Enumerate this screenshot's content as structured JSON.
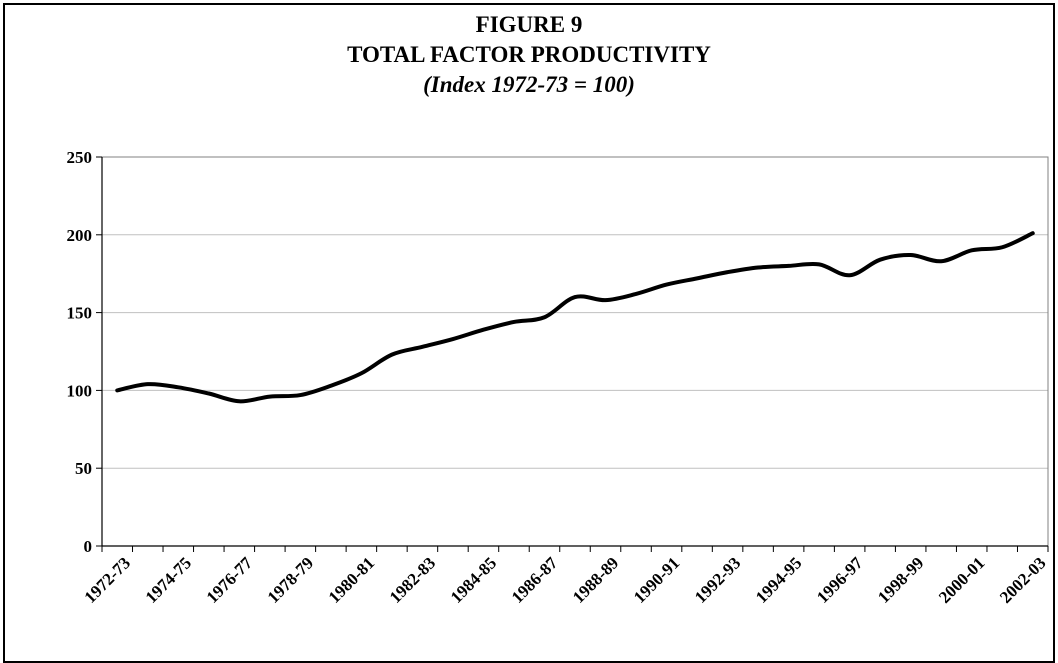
{
  "chart_data": {
    "type": "line",
    "title": "FIGURE 9",
    "subtitle": "TOTAL FACTOR PRODUCTIVITY",
    "subtitle2": "(Index 1972-73 = 100)",
    "xlabel": "",
    "ylabel": "",
    "ylim": [
      0,
      250
    ],
    "yticks": [
      0,
      50,
      100,
      150,
      200,
      250
    ],
    "grid": true,
    "legend": "none",
    "line_color": "#000000",
    "x": [
      "1972-73",
      "1973-74",
      "1974-75",
      "1975-76",
      "1976-77",
      "1977-78",
      "1978-79",
      "1979-80",
      "1980-81",
      "1981-82",
      "1982-83",
      "1983-84",
      "1984-85",
      "1985-86",
      "1986-87",
      "1987-88",
      "1988-89",
      "1989-90",
      "1990-91",
      "1991-92",
      "1992-93",
      "1993-94",
      "1994-95",
      "1995-96",
      "1996-97",
      "1997-98",
      "1998-99",
      "1999-00",
      "2000-01",
      "2001-02",
      "2002-03"
    ],
    "x_tick_labels": [
      "1972-73",
      "1974-75",
      "1976-77",
      "1978-79",
      "1980-81",
      "1982-83",
      "1984-85",
      "1986-87",
      "1988-89",
      "1990-91",
      "1992-93",
      "1994-95",
      "1996-97",
      "1998-99",
      "2000-01",
      "2002-03"
    ],
    "values": [
      100,
      104,
      102,
      98,
      93,
      96,
      97,
      103,
      111,
      123,
      128,
      133,
      139,
      144,
      147,
      160,
      158,
      162,
      168,
      172,
      176,
      179,
      180,
      181,
      174,
      184,
      187,
      183,
      190,
      192,
      201
    ]
  }
}
